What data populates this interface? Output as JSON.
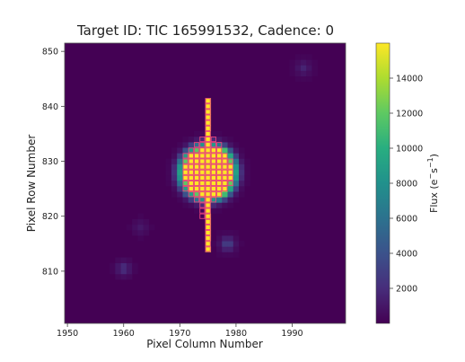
{
  "chart_data": {
    "type": "heatmap",
    "title": "Target ID: TIC 165991532, Cadence: 0",
    "xlabel": "Pixel Column Number",
    "ylabel": "Pixel Row Number",
    "xlim": [
      1949.5,
      1999.5
    ],
    "ylim": [
      800.5,
      851.5
    ],
    "x_ticks": [
      "1950",
      "1960",
      "1970",
      "1980",
      "1990"
    ],
    "y_ticks": [
      "810",
      "820",
      "830",
      "840",
      "850"
    ],
    "colorbar": {
      "label_base": "Flux (e",
      "label_exp1": "−",
      "label_mid": "s",
      "label_exp2": "−1",
      "label_end": ")",
      "range": [
        0,
        16000
      ],
      "ticks": [
        "2000",
        "4000",
        "6000",
        "8000",
        "10000",
        "12000",
        "14000"
      ],
      "colormap": "viridis"
    },
    "background_flux": 150,
    "saturated_flux": 16000,
    "aperture_color": "#e8417d",
    "sources": [
      {
        "col": 1975,
        "row": 828,
        "peak_flux": 16000,
        "core_radius_px": 4.3
      },
      {
        "col": 1978.5,
        "row": 815,
        "peak_flux": 3000
      },
      {
        "col": 1960,
        "row": 810.5,
        "peak_flux": 2000
      },
      {
        "col": 1992,
        "row": 847,
        "peak_flux": 1400
      },
      {
        "col": 1963,
        "row": 818,
        "peak_flux": 900
      },
      {
        "col": 1977,
        "row": 831,
        "peak_flux": 9000
      },
      {
        "col": 1977,
        "row": 825,
        "peak_flux": 8000
      }
    ],
    "bleed_column": {
      "col": 1975,
      "row_min": 814,
      "row_max": 841
    },
    "aperture_rows": [
      {
        "row": 841,
        "cols": [
          1975,
          1975
        ]
      },
      {
        "row": 840,
        "cols": [
          1975,
          1975
        ]
      },
      {
        "row": 839,
        "cols": [
          1975,
          1975
        ]
      },
      {
        "row": 838,
        "cols": [
          1975,
          1975
        ]
      },
      {
        "row": 837,
        "cols": [
          1975,
          1975
        ]
      },
      {
        "row": 836,
        "cols": [
          1975,
          1975
        ]
      },
      {
        "row": 835,
        "cols": [
          1975,
          1975
        ]
      },
      {
        "row": 834,
        "cols": [
          1974,
          1976
        ]
      },
      {
        "row": 833,
        "cols": [
          1973,
          1977
        ]
      },
      {
        "row": 832,
        "cols": [
          1972,
          1977
        ]
      },
      {
        "row": 831,
        "cols": [
          1971,
          1978
        ]
      },
      {
        "row": 830,
        "cols": [
          1971,
          1979
        ]
      },
      {
        "row": 829,
        "cols": [
          1971,
          1979
        ]
      },
      {
        "row": 828,
        "cols": [
          1971,
          1979
        ]
      },
      {
        "row": 827,
        "cols": [
          1971,
          1979
        ]
      },
      {
        "row": 826,
        "cols": [
          1971,
          1979
        ]
      },
      {
        "row": 825,
        "cols": [
          1971,
          1978
        ]
      },
      {
        "row": 824,
        "cols": [
          1972,
          1977
        ]
      },
      {
        "row": 823,
        "cols": [
          1973,
          1976
        ]
      },
      {
        "row": 822,
        "cols": [
          1974,
          1975
        ]
      },
      {
        "row": 821,
        "cols": [
          1974,
          1975
        ]
      },
      {
        "row": 820,
        "cols": [
          1974,
          1975
        ]
      },
      {
        "row": 819,
        "cols": [
          1975,
          1975
        ]
      },
      {
        "row": 818,
        "cols": [
          1975,
          1975
        ]
      },
      {
        "row": 817,
        "cols": [
          1975,
          1975
        ]
      },
      {
        "row": 816,
        "cols": [
          1975,
          1975
        ]
      },
      {
        "row": 815,
        "cols": [
          1975,
          1975
        ]
      },
      {
        "row": 814,
        "cols": [
          1975,
          1975
        ]
      }
    ]
  }
}
